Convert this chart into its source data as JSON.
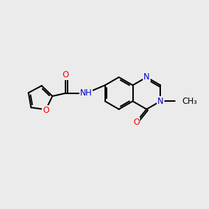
{
  "bg_color": "#ebebeb",
  "bond_color": "#000000",
  "bond_width": 1.5,
  "atom_colors": {
    "O": "#ff0000",
    "N": "#0000cc",
    "C": "#000000"
  },
  "font_size": 8.5,
  "figsize": [
    3.0,
    3.0
  ],
  "dpi": 100,
  "xlim": [
    0,
    10
  ],
  "ylim": [
    1,
    9
  ]
}
